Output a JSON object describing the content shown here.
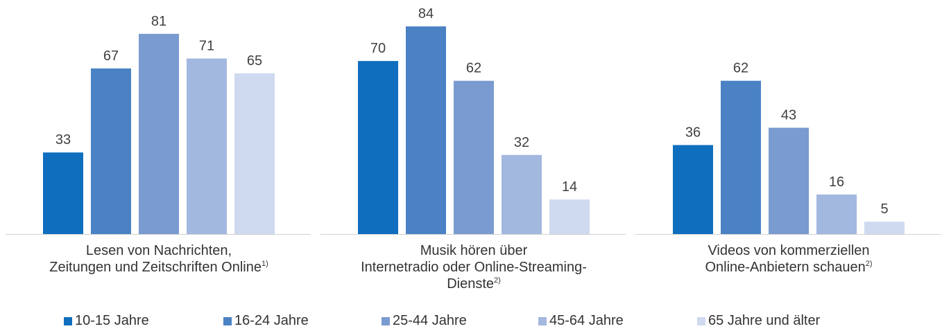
{
  "chart_data": {
    "type": "bar",
    "series_names": [
      "10-15 Jahre",
      "16-24 Jahre",
      "25-44 Jahre",
      "45-64 Jahre",
      "65 Jahre und älter"
    ],
    "colors": [
      "#106EBE",
      "#4A82C4",
      "#7A9BD0",
      "#A3B8DF",
      "#CFDAF0"
    ],
    "groups": [
      {
        "label_lines": [
          "Lesen von Nachrichten,",
          "Zeitungen und Zeitschriften Online"
        ],
        "footnote": "1)",
        "values": [
          33,
          67,
          81,
          71,
          65
        ]
      },
      {
        "label_lines": [
          "Musik hören über",
          "Internetradio oder Online-Streaming-",
          "Dienste"
        ],
        "footnote": "2)",
        "values": [
          70,
          84,
          62,
          32,
          14
        ]
      },
      {
        "label_lines": [
          "Videos von kommerziellen",
          "Online-Anbietern schauen"
        ],
        "footnote": "2)",
        "values": [
          36,
          62,
          43,
          16,
          5
        ]
      }
    ],
    "ylim": [
      0,
      100
    ],
    "grid": false,
    "legend_position": "bottom"
  }
}
